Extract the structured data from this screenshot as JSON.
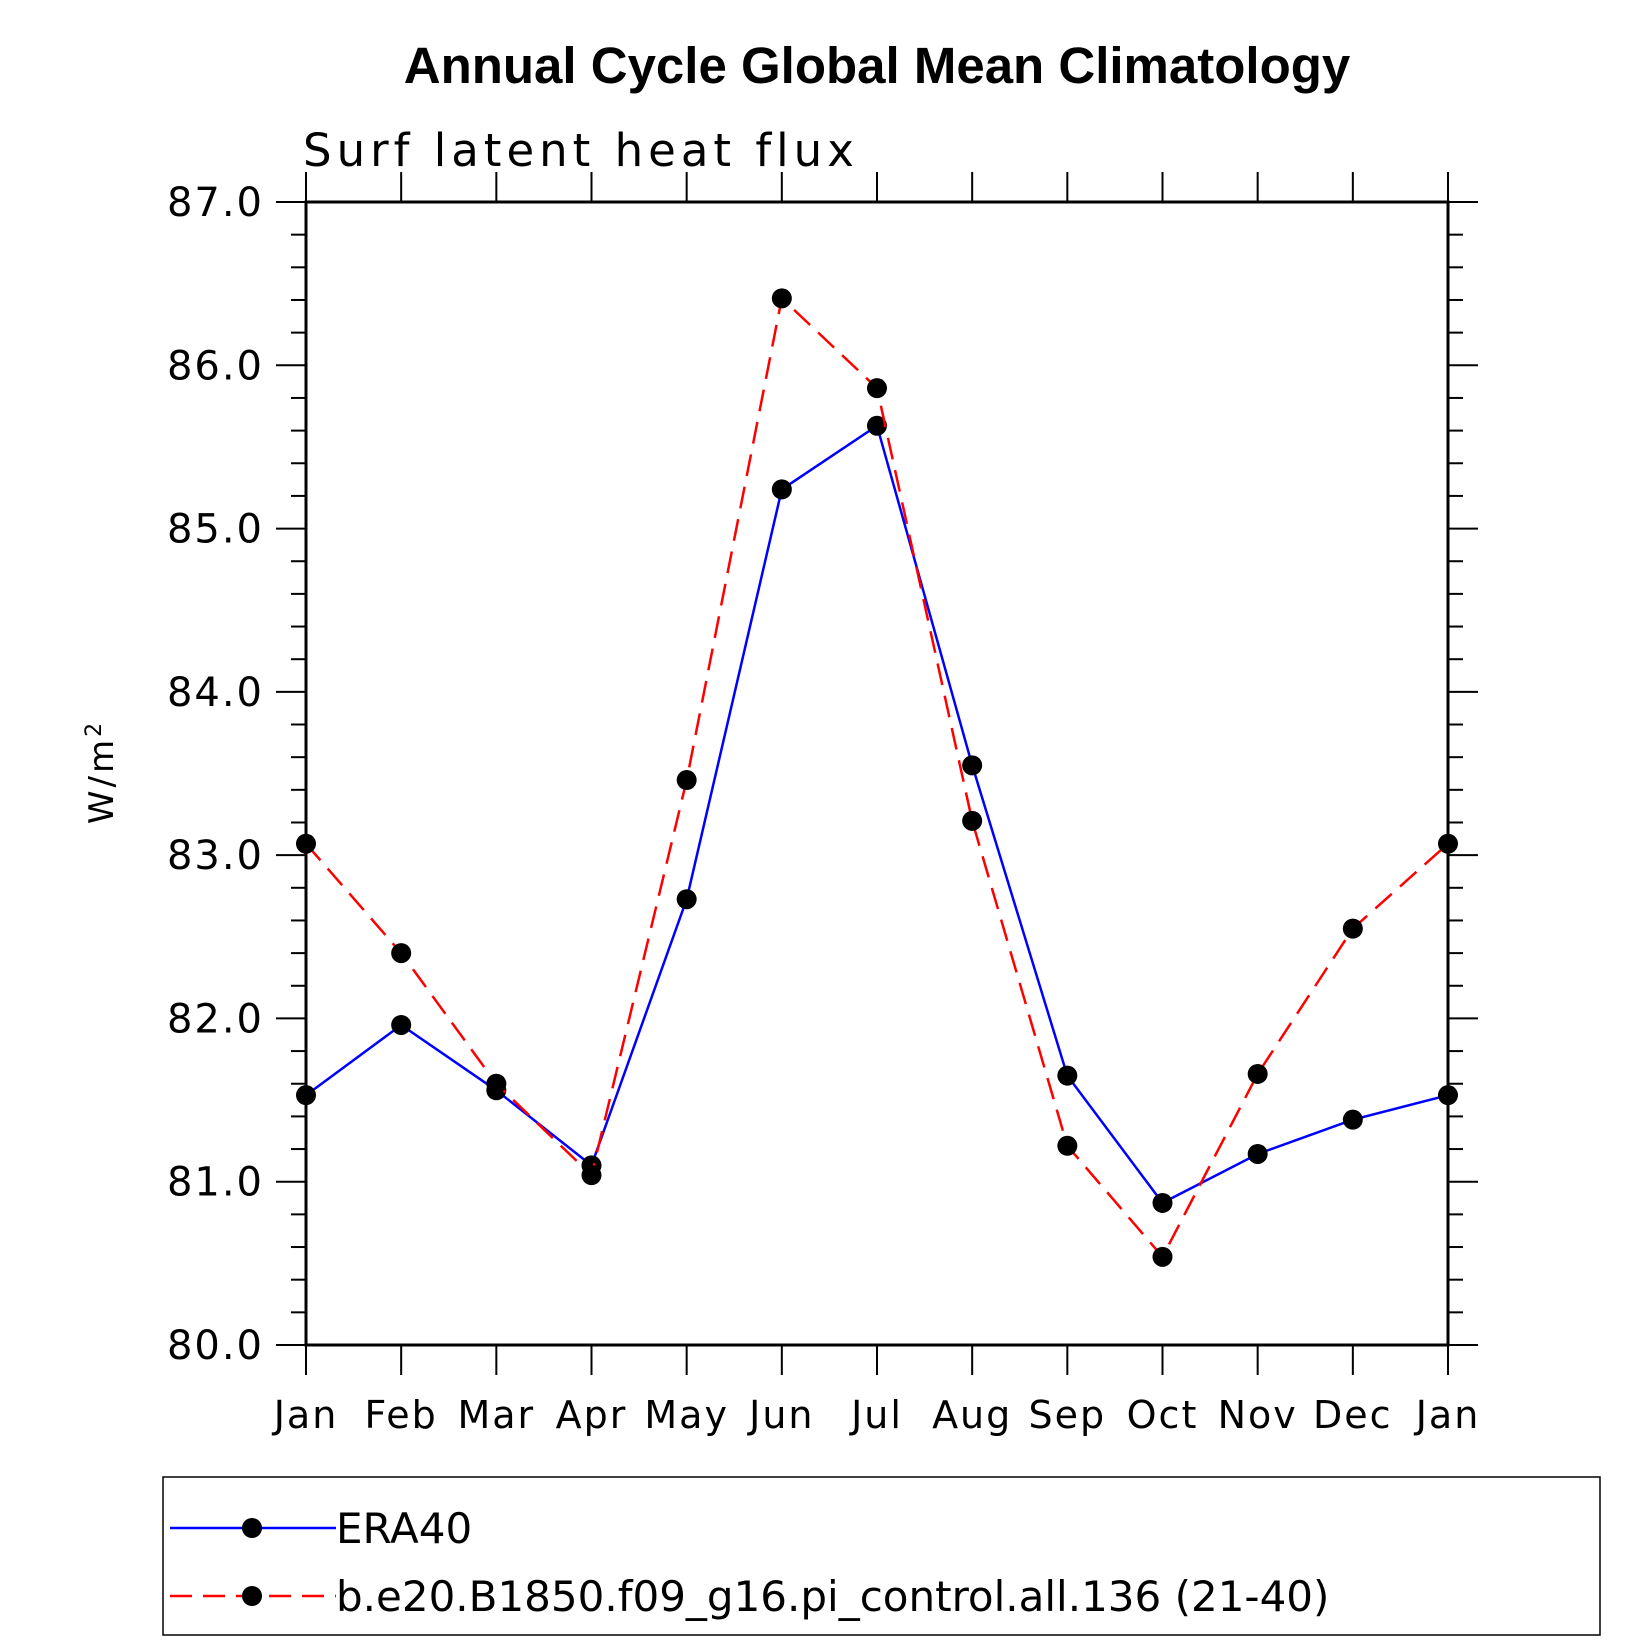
{
  "chart_data": {
    "type": "line",
    "title": "Annual Cycle Global Mean Climatology",
    "subtitle": "Surf latent heat flux",
    "xlabel": "",
    "ylabel": "W/m",
    "ylabel_superscript": "2",
    "categories": [
      "Jan",
      "Feb",
      "Mar",
      "Apr",
      "May",
      "Jun",
      "Jul",
      "Aug",
      "Sep",
      "Oct",
      "Nov",
      "Dec",
      "Jan"
    ],
    "ylim": [
      80.0,
      87.0
    ],
    "yticks": [
      "80.0",
      "81.0",
      "82.0",
      "83.0",
      "84.0",
      "85.0",
      "86.0",
      "87.0"
    ],
    "grid": false,
    "legend_position": "bottom",
    "series": [
      {
        "name": "ERA40",
        "color": "#0000ff",
        "dash": "solid",
        "values": [
          81.53,
          81.96,
          81.56,
          81.1,
          82.73,
          85.24,
          85.63,
          83.55,
          81.65,
          80.87,
          81.17,
          81.38,
          81.53
        ]
      },
      {
        "name": "b.e20.B1850.f09_g16.pi_control.all.136 (21-40)",
        "color": "#ff0000",
        "dash": "dashed",
        "values": [
          83.07,
          82.4,
          81.6,
          81.04,
          83.46,
          86.41,
          85.86,
          83.21,
          81.22,
          80.54,
          81.66,
          82.55,
          83.07
        ]
      }
    ]
  }
}
